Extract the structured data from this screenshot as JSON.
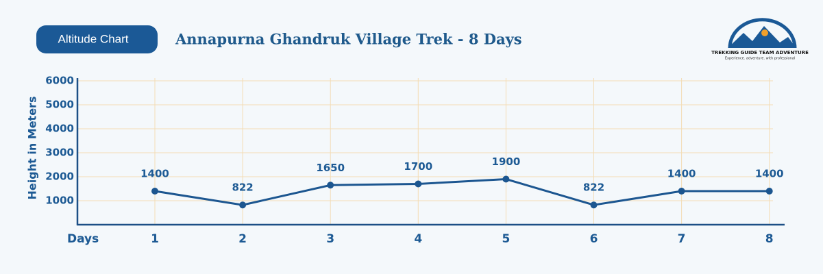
{
  "badge": "Altitude Chart",
  "logo": {
    "name": "TREKKING GUIDE TEAM ADVENTURE",
    "tagline": "Experience. adventure. with professional"
  },
  "chart_data": {
    "type": "line",
    "title": "Annapurna Ghandruk Village Trek - 8 Days",
    "x_label": "Days",
    "y_label": "Height in Meters",
    "categories": [
      "1",
      "2",
      "3",
      "4",
      "5",
      "6",
      "7",
      "8"
    ],
    "series": [
      {
        "name": "Altitude",
        "color": "#1c5690",
        "values": [
          1400,
          822,
          1650,
          1700,
          1900,
          822,
          1400,
          1400
        ]
      }
    ],
    "ylim": [
      0,
      6000
    ],
    "yticks": [
      1000,
      2000,
      3000,
      4000,
      5000,
      6000
    ],
    "grid": true
  }
}
